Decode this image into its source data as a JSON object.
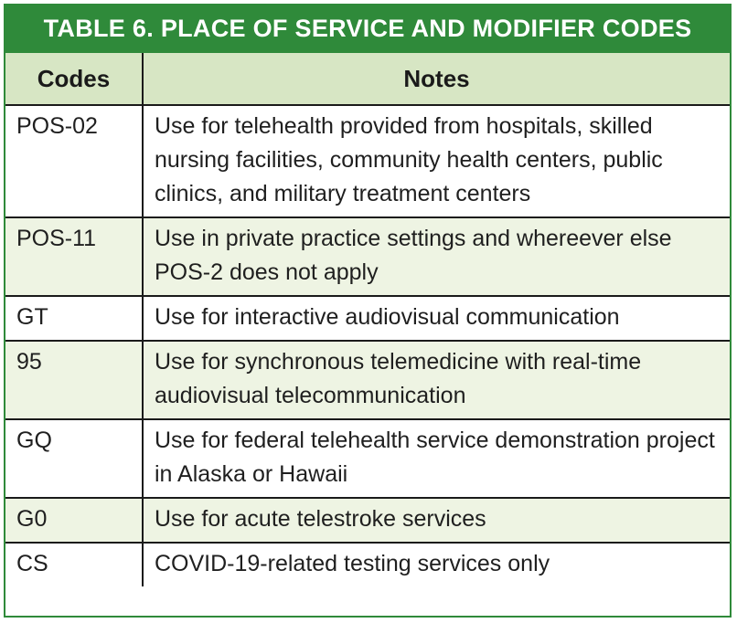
{
  "title": "TABLE 6. PLACE OF SERVICE AND MODIFIER CODES",
  "columns": [
    "Codes",
    "Notes"
  ],
  "rows": [
    {
      "code": "POS-02",
      "note": "Use for telehealth provided from hospitals, skilled nursing facilities, community health centers, public clinics, and military treatment centers"
    },
    {
      "code": "POS-11",
      "note": "Use in private practice settings and whereever else POS-2 does not apply"
    },
    {
      "code": "GT",
      "note": "Use for interactive audiovisual communication"
    },
    {
      "code": "95",
      "note": "Use for synchronous telemedicine with real-time audiovisual telecommunication"
    },
    {
      "code": "GQ",
      "note": "Use for federal telehealth service demonstration project in Alaska or Hawaii"
    },
    {
      "code": "G0",
      "note": "Use for acute telestroke services"
    },
    {
      "code": "CS",
      "note": "COVID-19-related testing services only"
    }
  ],
  "colors": {
    "title_bg": "#2f8a3a",
    "header_bg": "#d7e6c4",
    "shade_bg": "#eef4e3"
  }
}
